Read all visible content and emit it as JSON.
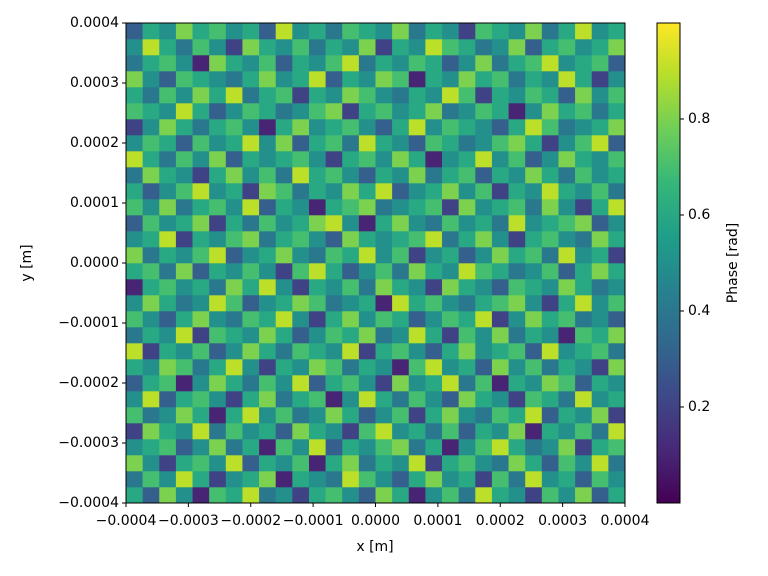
{
  "chart_data": {
    "type": "heatmap",
    "xlabel": "x [m]",
    "ylabel": "y [m]",
    "colorbar_label": "Phase [rad]",
    "colormap": "viridis",
    "xlim": [
      -0.0004,
      0.0004
    ],
    "ylim": [
      -0.0004,
      0.0004
    ],
    "clim": [
      0,
      1
    ],
    "xticks": [
      {
        "value": -0.0004,
        "label": "−0.0004"
      },
      {
        "value": -0.0003,
        "label": "−0.0003"
      },
      {
        "value": -0.0002,
        "label": "−0.0002"
      },
      {
        "value": -0.0001,
        "label": "−0.0001"
      },
      {
        "value": 0,
        "label": "0.0000"
      },
      {
        "value": 0.0001,
        "label": "0.0001"
      },
      {
        "value": 0.0002,
        "label": "0.0002"
      },
      {
        "value": 0.0003,
        "label": "0.0003"
      },
      {
        "value": 0.0004,
        "label": "0.0004"
      }
    ],
    "yticks": [
      {
        "value": -0.0004,
        "label": "−0.0004"
      },
      {
        "value": -0.0003,
        "label": "−0.0003"
      },
      {
        "value": -0.0002,
        "label": "−0.0002"
      },
      {
        "value": -0.0001,
        "label": "−0.0001"
      },
      {
        "value": 0,
        "label": "0.0000"
      },
      {
        "value": 0.0001,
        "label": "0.0001"
      },
      {
        "value": 0.0002,
        "label": "0.0002"
      },
      {
        "value": 0.0003,
        "label": "0.0003"
      },
      {
        "value": 0.0004,
        "label": "0.0004"
      }
    ],
    "cticks": [
      0.2,
      0.4,
      0.6,
      0.8
    ],
    "z": [
      [
        0.6,
        0.3,
        0.8,
        0.5,
        0.1,
        0.7,
        0.6,
        0.9,
        0.4,
        0.5,
        0.2,
        0.6,
        0.7,
        0.5,
        0.3,
        0.8,
        0.6,
        0.1,
        0.5,
        0.7,
        0.4,
        0.9,
        0.6,
        0.5,
        0.2,
        0.7,
        0.5,
        0.8,
        0.3,
        0.6
      ],
      [
        0.4,
        0.7,
        0.5,
        0.9,
        0.6,
        0.2,
        0.5,
        0.6,
        0.8,
        0.1,
        0.6,
        0.5,
        0.4,
        0.9,
        0.7,
        0.5,
        0.3,
        0.6,
        0.8,
        0.5,
        0.6,
        0.2,
        0.7,
        0.4,
        0.9,
        0.5,
        0.6,
        0.3,
        0.7,
        0.5
      ],
      [
        0.8,
        0.5,
        0.2,
        0.6,
        0.7,
        0.5,
        0.9,
        0.3,
        0.6,
        0.5,
        0.7,
        0.1,
        0.6,
        0.8,
        0.4,
        0.6,
        0.5,
        0.9,
        0.2,
        0.6,
        0.7,
        0.5,
        0.4,
        0.8,
        0.6,
        0.3,
        0.7,
        0.5,
        0.9,
        0.4
      ],
      [
        0.5,
        0.6,
        0.7,
        0.3,
        0.5,
        0.8,
        0.4,
        0.6,
        0.1,
        0.7,
        0.5,
        0.9,
        0.3,
        0.6,
        0.5,
        0.7,
        0.8,
        0.4,
        0.6,
        0.1,
        0.5,
        0.7,
        0.9,
        0.6,
        0.4,
        0.5,
        0.8,
        0.2,
        0.6,
        0.7
      ],
      [
        0.2,
        0.8,
        0.6,
        0.5,
        0.9,
        0.4,
        0.7,
        0.5,
        0.6,
        0.3,
        0.8,
        0.6,
        0.5,
        0.2,
        0.7,
        0.9,
        0.5,
        0.6,
        0.4,
        0.7,
        0.3,
        0.6,
        0.5,
        0.8,
        0.1,
        0.6,
        0.5,
        0.7,
        0.4,
        0.9
      ],
      [
        0.7,
        0.4,
        0.5,
        0.8,
        0.6,
        0.1,
        0.6,
        0.9,
        0.5,
        0.7,
        0.4,
        0.5,
        0.8,
        0.6,
        0.3,
        0.5,
        0.7,
        0.2,
        0.6,
        0.8,
        0.5,
        0.4,
        0.7,
        0.6,
        0.9,
        0.3,
        0.6,
        0.5,
        0.8,
        0.2
      ],
      [
        0.5,
        0.9,
        0.3,
        0.6,
        0.7,
        0.5,
        0.2,
        0.6,
        0.8,
        0.4,
        0.6,
        0.7,
        0.1,
        0.5,
        0.9,
        0.6,
        0.4,
        0.7,
        0.5,
        0.3,
        0.8,
        0.6,
        0.5,
        0.2,
        0.7,
        0.6,
        0.4,
        0.9,
        0.5,
        0.6
      ],
      [
        0.3,
        0.6,
        0.7,
        0.1,
        0.5,
        0.8,
        0.6,
        0.4,
        0.7,
        0.5,
        0.9,
        0.3,
        0.6,
        0.7,
        0.5,
        0.2,
        0.8,
        0.5,
        0.6,
        0.9,
        0.4,
        0.7,
        0.1,
        0.6,
        0.5,
        0.8,
        0.7,
        0.3,
        0.6,
        0.5
      ],
      [
        0.6,
        0.5,
        0.8,
        0.7,
        0.4,
        0.6,
        0.9,
        0.5,
        0.2,
        0.6,
        0.5,
        0.8,
        0.7,
        0.4,
        0.6,
        0.5,
        0.1,
        0.7,
        0.9,
        0.5,
        0.6,
        0.3,
        0.8,
        0.5,
        0.7,
        0.4,
        0.6,
        0.5,
        0.2,
        0.8
      ],
      [
        0.9,
        0.2,
        0.6,
        0.5,
        0.7,
        0.3,
        0.5,
        0.8,
        0.6,
        0.4,
        0.7,
        0.6,
        0.5,
        0.9,
        0.2,
        0.6,
        0.7,
        0.5,
        0.3,
        0.6,
        0.8,
        0.5,
        0.6,
        0.7,
        0.3,
        0.9,
        0.5,
        0.6,
        0.7,
        0.4
      ],
      [
        0.4,
        0.6,
        0.5,
        0.9,
        0.2,
        0.7,
        0.6,
        0.5,
        0.8,
        0.6,
        0.3,
        0.5,
        0.7,
        0.6,
        0.8,
        0.4,
        0.5,
        0.9,
        0.6,
        0.2,
        0.7,
        0.5,
        0.8,
        0.4,
        0.6,
        0.5,
        0.1,
        0.7,
        0.6,
        0.8
      ],
      [
        0.7,
        0.5,
        0.3,
        0.6,
        0.8,
        0.5,
        0.4,
        0.7,
        0.6,
        0.9,
        0.5,
        0.2,
        0.6,
        0.8,
        0.5,
        0.7,
        0.6,
        0.3,
        0.5,
        0.7,
        0.6,
        0.9,
        0.2,
        0.5,
        0.8,
        0.6,
        0.7,
        0.4,
        0.5,
        0.3
      ],
      [
        0.5,
        0.8,
        0.6,
        0.4,
        0.5,
        0.9,
        0.7,
        0.3,
        0.5,
        0.6,
        0.8,
        0.7,
        0.4,
        0.5,
        0.6,
        0.1,
        0.9,
        0.6,
        0.7,
        0.5,
        0.4,
        0.6,
        0.7,
        0.8,
        0.5,
        0.2,
        0.6,
        0.9,
        0.5,
        0.7
      ],
      [
        0.1,
        0.6,
        0.7,
        0.5,
        0.6,
        0.4,
        0.8,
        0.6,
        0.9,
        0.5,
        0.2,
        0.6,
        0.5,
        0.7,
        0.4,
        0.8,
        0.6,
        0.5,
        0.2,
        0.8,
        0.6,
        0.5,
        0.3,
        0.7,
        0.6,
        0.5,
        0.8,
        0.6,
        0.4,
        0.5
      ],
      [
        0.6,
        0.7,
        0.4,
        0.8,
        0.3,
        0.6,
        0.5,
        0.7,
        0.5,
        0.2,
        0.7,
        0.9,
        0.6,
        0.3,
        0.5,
        0.7,
        0.4,
        0.8,
        0.6,
        0.5,
        0.9,
        0.7,
        0.6,
        0.4,
        0.5,
        0.7,
        0.3,
        0.6,
        0.8,
        0.6
      ],
      [
        0.8,
        0.4,
        0.6,
        0.5,
        0.7,
        0.9,
        0.3,
        0.5,
        0.6,
        0.8,
        0.5,
        0.4,
        0.7,
        0.6,
        0.9,
        0.5,
        0.7,
        0.2,
        0.5,
        0.6,
        0.3,
        0.5,
        0.8,
        0.6,
        0.7,
        0.4,
        0.9,
        0.5,
        0.6,
        0.2
      ],
      [
        0.5,
        0.6,
        0.9,
        0.2,
        0.6,
        0.5,
        0.7,
        0.8,
        0.4,
        0.6,
        0.7,
        0.5,
        0.3,
        0.8,
        0.6,
        0.5,
        0.6,
        0.7,
        0.9,
        0.4,
        0.6,
        0.8,
        0.5,
        0.2,
        0.6,
        0.7,
        0.5,
        0.4,
        0.8,
        0.6
      ],
      [
        0.3,
        0.7,
        0.5,
        0.6,
        0.8,
        0.2,
        0.6,
        0.4,
        0.7,
        0.5,
        0.6,
        0.8,
        0.9,
        0.5,
        0.1,
        0.6,
        0.8,
        0.5,
        0.4,
        0.7,
        0.5,
        0.6,
        0.4,
        0.9,
        0.5,
        0.6,
        0.7,
        0.8,
        0.3,
        0.5
      ],
      [
        0.7,
        0.5,
        0.8,
        0.4,
        0.6,
        0.7,
        0.5,
        0.9,
        0.3,
        0.6,
        0.5,
        0.1,
        0.6,
        0.7,
        0.8,
        0.4,
        0.5,
        0.6,
        0.7,
        0.2,
        0.8,
        0.5,
        0.6,
        0.7,
        0.4,
        0.8,
        0.5,
        0.2,
        0.6,
        0.9
      ],
      [
        0.6,
        0.3,
        0.5,
        0.7,
        0.9,
        0.5,
        0.6,
        0.2,
        0.8,
        0.7,
        0.4,
        0.6,
        0.5,
        0.8,
        0.6,
        0.9,
        0.3,
        0.5,
        0.6,
        0.8,
        0.5,
        0.7,
        0.2,
        0.6,
        0.5,
        0.9,
        0.6,
        0.5,
        0.7,
        0.4
      ],
      [
        0.4,
        0.8,
        0.6,
        0.5,
        0.2,
        0.6,
        0.8,
        0.5,
        0.7,
        0.4,
        0.9,
        0.6,
        0.7,
        0.5,
        0.3,
        0.6,
        0.5,
        0.8,
        0.4,
        0.6,
        0.7,
        0.3,
        0.6,
        0.5,
        0.8,
        0.6,
        0.4,
        0.7,
        0.5,
        0.6
      ],
      [
        0.9,
        0.6,
        0.4,
        0.7,
        0.5,
        0.8,
        0.3,
        0.6,
        0.5,
        0.6,
        0.7,
        0.5,
        0.2,
        0.6,
        0.7,
        0.5,
        0.8,
        0.6,
        0.1,
        0.5,
        0.6,
        0.9,
        0.5,
        0.7,
        0.3,
        0.5,
        0.8,
        0.6,
        0.5,
        0.7
      ],
      [
        0.5,
        0.7,
        0.6,
        0.3,
        0.7,
        0.5,
        0.6,
        0.9,
        0.5,
        0.8,
        0.3,
        0.6,
        0.7,
        0.4,
        0.9,
        0.6,
        0.5,
        0.3,
        0.7,
        0.6,
        0.4,
        0.5,
        0.7,
        0.8,
        0.6,
        0.2,
        0.5,
        0.7,
        0.9,
        0.3
      ],
      [
        0.2,
        0.5,
        0.8,
        0.6,
        0.4,
        0.6,
        0.7,
        0.5,
        0.1,
        0.6,
        0.8,
        0.5,
        0.6,
        0.7,
        0.5,
        0.3,
        0.6,
        0.9,
        0.5,
        0.7,
        0.6,
        0.5,
        0.3,
        0.6,
        0.9,
        0.7,
        0.4,
        0.5,
        0.6,
        0.8
      ],
      [
        0.7,
        0.6,
        0.5,
        0.9,
        0.6,
        0.3,
        0.5,
        0.7,
        0.6,
        0.4,
        0.5,
        0.7,
        0.8,
        0.2,
        0.6,
        0.7,
        0.5,
        0.6,
        0.8,
        0.4,
        0.5,
        0.7,
        0.6,
        0.1,
        0.5,
        0.8,
        0.6,
        0.7,
        0.4,
        0.6
      ],
      [
        0.6,
        0.4,
        0.7,
        0.5,
        0.8,
        0.6,
        0.9,
        0.4,
        0.6,
        0.7,
        0.2,
        0.6,
        0.5,
        0.8,
        0.7,
        0.5,
        0.4,
        0.6,
        0.5,
        0.9,
        0.7,
        0.2,
        0.6,
        0.5,
        0.7,
        0.6,
        0.3,
        0.8,
        0.5,
        0.7
      ],
      [
        0.8,
        0.5,
        0.3,
        0.7,
        0.6,
        0.5,
        0.4,
        0.6,
        0.8,
        0.5,
        0.6,
        0.9,
        0.3,
        0.6,
        0.5,
        0.8,
        0.7,
        0.1,
        0.6,
        0.5,
        0.8,
        0.6,
        0.7,
        0.4,
        0.6,
        0.5,
        0.9,
        0.6,
        0.2,
        0.5
      ],
      [
        0.4,
        0.6,
        0.7,
        0.5,
        0.1,
        0.8,
        0.6,
        0.5,
        0.7,
        0.3,
        0.6,
        0.5,
        0.7,
        0.9,
        0.4,
        0.6,
        0.5,
        0.7,
        0.6,
        0.3,
        0.5,
        0.8,
        0.4,
        0.6,
        0.7,
        0.9,
        0.5,
        0.6,
        0.7,
        0.3
      ],
      [
        0.5,
        0.9,
        0.6,
        0.4,
        0.7,
        0.5,
        0.2,
        0.8,
        0.6,
        0.5,
        0.7,
        0.4,
        0.6,
        0.5,
        0.8,
        0.2,
        0.6,
        0.5,
        0.9,
        0.7,
        0.6,
        0.4,
        0.5,
        0.8,
        0.3,
        0.6,
        0.7,
        0.5,
        0.6,
        0.8
      ],
      [
        0.3,
        0.6,
        0.5,
        0.8,
        0.6,
        0.7,
        0.5,
        0.6,
        0.3,
        0.9,
        0.5,
        0.6,
        0.4,
        0.7,
        0.6,
        0.5,
        0.8,
        0.4,
        0.6,
        0.5,
        0.2,
        0.7,
        0.6,
        0.5,
        0.8,
        0.4,
        0.6,
        0.9,
        0.5,
        0.6
      ]
    ]
  }
}
